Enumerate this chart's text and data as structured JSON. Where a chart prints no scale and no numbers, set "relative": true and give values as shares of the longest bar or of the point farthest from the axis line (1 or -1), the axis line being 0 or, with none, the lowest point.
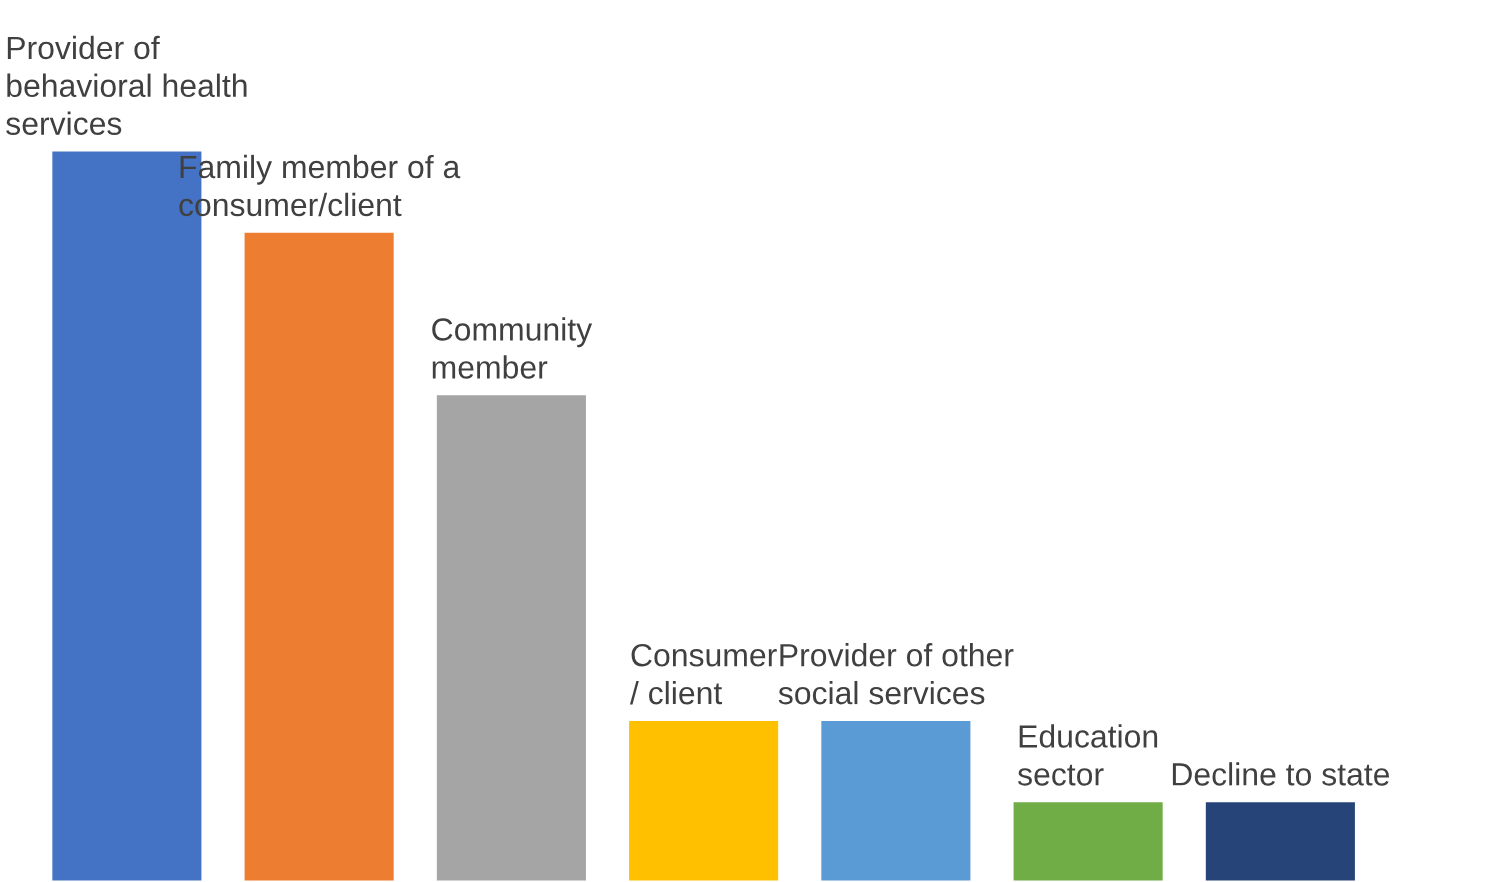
{
  "chart_data": {
    "type": "bar",
    "relative": true,
    "categories": [
      "Provider of\nbehavioral health\nservices",
      "Family member of a\nconsumer/client",
      "Community\nmember",
      "Consumer\n/ client",
      "Provider of other\nsocial services",
      "Education\nsector",
      "Decline to state"
    ],
    "values": [
      1,
      0.889,
      0.667,
      0.222,
      0.222,
      0.111,
      0.111
    ],
    "colors": [
      "#4472c4",
      "#ed7d31",
      "#a5a5a5",
      "#ffc000",
      "#5b9bd5",
      "#70ad47",
      "#264478"
    ],
    "legend": false
  }
}
